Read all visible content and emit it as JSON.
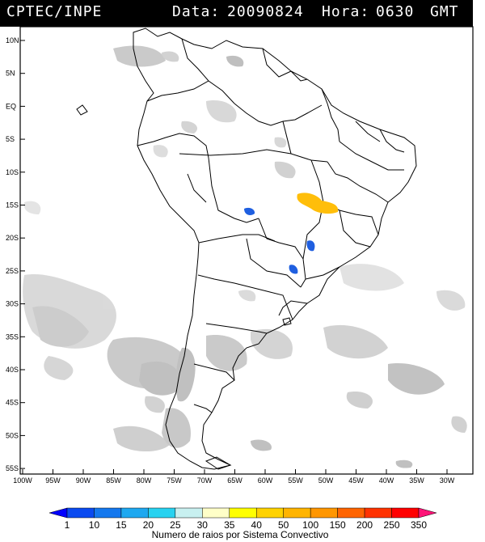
{
  "header": {
    "source": "CPTEC/INPE",
    "date_label": "Data:",
    "date": "20090824",
    "hour_label": "Hora:",
    "hour": "0630",
    "tz": "GMT"
  },
  "axes": {
    "lat_labels": [
      "10N",
      "5N",
      "EQ",
      "5S",
      "10S",
      "15S",
      "20S",
      "25S",
      "30S",
      "35S",
      "40S",
      "45S",
      "50S",
      "55S"
    ],
    "lon_labels": [
      "100W",
      "95W",
      "90W",
      "85W",
      "80W",
      "75W",
      "70W",
      "65W",
      "60W",
      "55W",
      "50W",
      "45W",
      "40W",
      "35W",
      "30W"
    ]
  },
  "colorbar": {
    "title": "Numero de raios por Sistema Convectivo",
    "labels": [
      "1",
      "10",
      "15",
      "20",
      "25",
      "30",
      "35",
      "40",
      "50",
      "100",
      "150",
      "200",
      "250",
      "350"
    ],
    "colors": [
      "#0000ff",
      "#0a4af0",
      "#1478ee",
      "#1ea8f0",
      "#28d2f0",
      "#c8f0f0",
      "#ffffc8",
      "#ffff00",
      "#ffd200",
      "#ffb400",
      "#ff9600",
      "#ff6400",
      "#ff3200",
      "#ff0000",
      "#ff1478"
    ]
  },
  "colors": {
    "cloud": "#cfcfcf",
    "cloud_light": "#e2e2e2",
    "land": "#ffffff",
    "lightning_blue": "#1f5fe0",
    "lightning_orange": "#ffb400"
  }
}
